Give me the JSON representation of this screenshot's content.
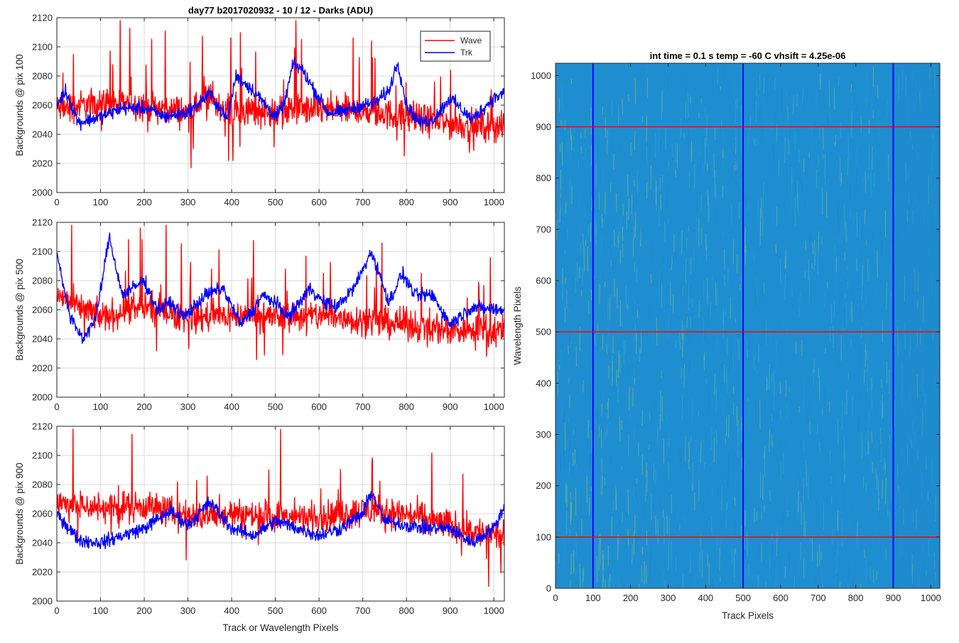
{
  "figure_title": "day77 b2017020932 - 10 / 12 - Darks (ADU)",
  "colors": {
    "wave": "#ff0000",
    "trk": "#0000ff",
    "grid": "#d9d9d9",
    "axis": "#262626"
  },
  "chart_data": [
    {
      "type": "line",
      "title": "day77 b2017020932 - 10 / 12 - Darks (ADU)",
      "xlabel": "",
      "ylabel": "Backgrounds @ pix 100",
      "xlim": [
        0,
        1024
      ],
      "ylim": [
        2000,
        2120
      ],
      "xticks": [
        "0",
        "100",
        "200",
        "300",
        "400",
        "500",
        "600",
        "700",
        "800",
        "900",
        "1000"
      ],
      "yticks": [
        "2000",
        "2020",
        "2040",
        "2060",
        "2080",
        "2100",
        "2120"
      ],
      "grid": true,
      "legend": {
        "position": "top-right",
        "entries": [
          "Wave",
          "Trk"
        ]
      },
      "series": [
        {
          "name": "Wave",
          "color": "#ff0000",
          "mean": 2055,
          "noise": 9,
          "spikes": 0.05,
          "x": [
            0,
            100,
            200,
            300,
            345,
            400,
            500,
            600,
            700,
            800,
            900,
            1024
          ],
          "values": [
            2057,
            2062,
            2060,
            2055,
            2065,
            2056,
            2056,
            2057,
            2056,
            2052,
            2047,
            2045
          ]
        },
        {
          "name": "Trk",
          "color": "#0000ff",
          "mean": 2055,
          "noise": 4,
          "spikes": 0,
          "x": [
            0,
            20,
            50,
            100,
            150,
            200,
            250,
            300,
            350,
            390,
            410,
            450,
            500,
            520,
            540,
            560,
            590,
            620,
            650,
            700,
            730,
            760,
            780,
            800,
            830,
            860,
            900,
            950,
            1000,
            1024
          ],
          "values": [
            2060,
            2070,
            2048,
            2052,
            2058,
            2058,
            2052,
            2055,
            2068,
            2050,
            2080,
            2070,
            2052,
            2060,
            2088,
            2085,
            2070,
            2055,
            2055,
            2060,
            2062,
            2070,
            2090,
            2060,
            2048,
            2050,
            2065,
            2050,
            2065,
            2068
          ]
        }
      ]
    },
    {
      "type": "line",
      "title": "",
      "xlabel": "",
      "ylabel": "Backgrounds @ pix 500",
      "xlim": [
        0,
        1024
      ],
      "ylim": [
        2000,
        2120
      ],
      "xticks": [
        "0",
        "100",
        "200",
        "300",
        "400",
        "500",
        "600",
        "700",
        "800",
        "900",
        "1000"
      ],
      "yticks": [
        "2000",
        "2020",
        "2040",
        "2060",
        "2080",
        "2100",
        "2120"
      ],
      "grid": true,
      "series": [
        {
          "name": "Wave",
          "color": "#ff0000",
          "mean": 2055,
          "noise": 9,
          "spikes": 0.04,
          "x": [
            0,
            100,
            200,
            300,
            400,
            500,
            600,
            700,
            800,
            900,
            1024
          ],
          "values": [
            2070,
            2055,
            2062,
            2055,
            2056,
            2055,
            2056,
            2053,
            2050,
            2046,
            2045
          ]
        },
        {
          "name": "Trk",
          "color": "#0000ff",
          "mean": 2058,
          "noise": 4,
          "spikes": 0,
          "x": [
            0,
            30,
            60,
            90,
            120,
            150,
            200,
            230,
            260,
            290,
            340,
            380,
            420,
            450,
            470,
            500,
            530,
            580,
            610,
            640,
            680,
            720,
            760,
            790,
            820,
            860,
            900,
            950,
            1000,
            1024
          ],
          "values": [
            2100,
            2055,
            2040,
            2055,
            2110,
            2070,
            2080,
            2060,
            2065,
            2055,
            2070,
            2075,
            2050,
            2060,
            2070,
            2065,
            2055,
            2075,
            2065,
            2062,
            2075,
            2100,
            2065,
            2085,
            2070,
            2070,
            2050,
            2062,
            2060,
            2060
          ]
        }
      ]
    },
    {
      "type": "line",
      "title": "",
      "xlabel": "Track or Wavelength Pixels",
      "ylabel": "Backgrounds @ pix 900",
      "xlim": [
        0,
        1024
      ],
      "ylim": [
        2000,
        2120
      ],
      "xticks": [
        "0",
        "100",
        "200",
        "300",
        "400",
        "500",
        "600",
        "700",
        "800",
        "900",
        "1000"
      ],
      "yticks": [
        "2000",
        "2020",
        "2040",
        "2060",
        "2080",
        "2100",
        "2120"
      ],
      "grid": true,
      "series": [
        {
          "name": "Wave",
          "color": "#ff0000",
          "mean": 2062,
          "noise": 9,
          "spikes": 0.04,
          "x": [
            0,
            100,
            200,
            300,
            400,
            500,
            600,
            700,
            800,
            900,
            1000,
            1024
          ],
          "values": [
            2068,
            2064,
            2066,
            2058,
            2060,
            2058,
            2057,
            2062,
            2060,
            2052,
            2045,
            2045
          ]
        },
        {
          "name": "Trk",
          "color": "#0000ff",
          "mean": 2045,
          "noise": 4,
          "spikes": 0,
          "x": [
            0,
            50,
            100,
            150,
            200,
            260,
            300,
            350,
            400,
            450,
            500,
            550,
            600,
            650,
            700,
            720,
            750,
            800,
            850,
            900,
            950,
            1000,
            1024
          ],
          "values": [
            2060,
            2042,
            2040,
            2045,
            2050,
            2062,
            2052,
            2068,
            2050,
            2045,
            2055,
            2050,
            2045,
            2050,
            2060,
            2075,
            2055,
            2052,
            2050,
            2050,
            2040,
            2050,
            2065
          ]
        }
      ]
    },
    {
      "type": "heatmap",
      "title": "int time = 0.1 s   temp = -60 C   vhsift = 4.25e-06",
      "xlabel": "Track Pixels",
      "ylabel": "Wavelength Pixels",
      "xlim": [
        0,
        1024
      ],
      "ylim": [
        0,
        1024
      ],
      "xticks": [
        "0",
        "100",
        "200",
        "300",
        "400",
        "500",
        "600",
        "700",
        "800",
        "900",
        "1000"
      ],
      "yticks": [
        "0",
        "100",
        "200",
        "300",
        "400",
        "500",
        "600",
        "700",
        "800",
        "900",
        "1000"
      ],
      "colormap": "parula",
      "base_color": "#1f8ed0",
      "highlight_color": "#9fc95a",
      "hlines": {
        "values": [
          100,
          500,
          900
        ],
        "color": "#ff0000"
      },
      "vlines": {
        "values": [
          100,
          500,
          900
        ],
        "color": "#0000ff"
      }
    }
  ]
}
